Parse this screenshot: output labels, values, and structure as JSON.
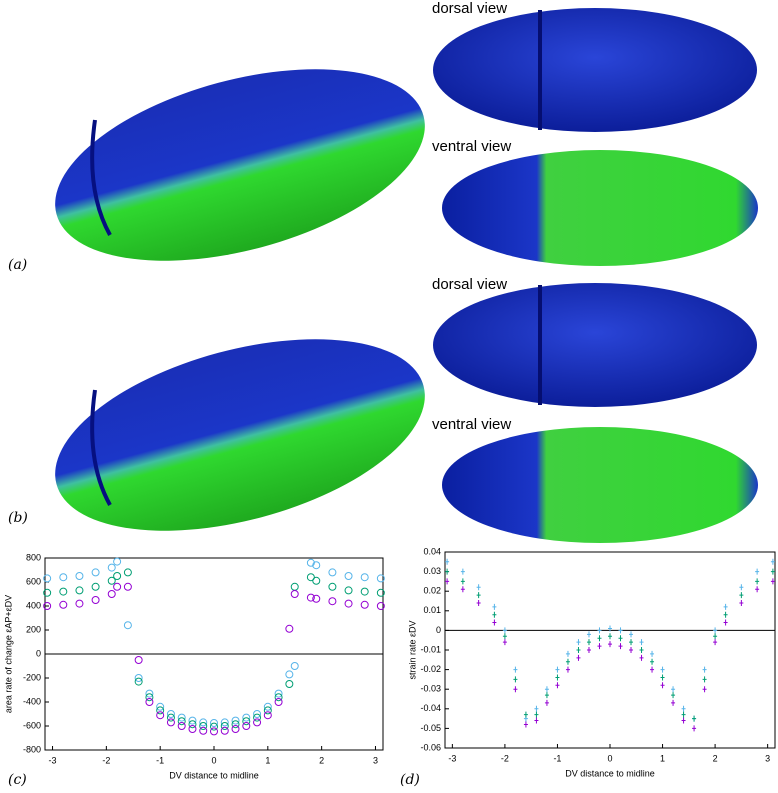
{
  "figure": {
    "panel_labels": [
      "(a)",
      "(b)",
      "(c)",
      "(d)"
    ],
    "view_labels": [
      "dorsal view",
      "ventral view",
      "dorsal view",
      "ventral view"
    ]
  },
  "chart_data": [
    {
      "type": "scatter",
      "marker": "circle",
      "y_label": "area rate of change εAP+εDV",
      "x_label": "DV distance to midline",
      "x": [
        -3.1,
        -2.8,
        -2.5,
        -2.2,
        -1.9,
        -1.8,
        -1.6,
        -1.4,
        -1.2,
        -1.0,
        -0.8,
        -0.6,
        -0.4,
        -0.2,
        0,
        0.2,
        0.4,
        0.6,
        0.8,
        1.0,
        1.2,
        1.4,
        1.5,
        1.8,
        1.9,
        2.2,
        2.5,
        2.8,
        3.1
      ],
      "series": [
        {
          "color": "#56b4e9",
          "values": [
            630,
            640,
            650,
            680,
            720,
            770,
            240,
            -200,
            -330,
            -440,
            -500,
            -530,
            -555,
            -570,
            -575,
            -570,
            -555,
            -530,
            -500,
            -440,
            -330,
            -170,
            -100,
            760,
            740,
            680,
            650,
            640,
            630
          ]
        },
        {
          "color": "#009e73",
          "values": [
            510,
            520,
            530,
            560,
            610,
            650,
            680,
            -230,
            -360,
            -470,
            -530,
            -560,
            -585,
            -600,
            -605,
            -600,
            -585,
            -560,
            -530,
            -470,
            -360,
            -250,
            560,
            640,
            610,
            560,
            530,
            520,
            510
          ]
        },
        {
          "color": "#9400d3",
          "values": [
            400,
            410,
            420,
            450,
            500,
            560,
            560,
            -50,
            -400,
            -510,
            -570,
            -600,
            -625,
            -640,
            -645,
            -640,
            -625,
            -600,
            -570,
            -510,
            -400,
            210,
            500,
            470,
            460,
            440,
            420,
            410,
            400
          ]
        }
      ],
      "xlim": [
        -3.14,
        3.14
      ],
      "xticks": [
        -3,
        -2,
        -1,
        0,
        1,
        2,
        3
      ],
      "ylim": [
        -800,
        800
      ],
      "yticks": [
        -800,
        -600,
        -400,
        -200,
        0,
        200,
        400,
        600,
        800
      ]
    },
    {
      "type": "scatter",
      "marker": "plus",
      "y_label": "strain rate εDV",
      "x_label": "DV distance to midline",
      "x": [
        -3.1,
        -2.8,
        -2.5,
        -2.2,
        -2.0,
        -1.8,
        -1.6,
        -1.4,
        -1.2,
        -1.0,
        -0.8,
        -0.6,
        -0.4,
        -0.2,
        0,
        0.2,
        0.4,
        0.6,
        0.8,
        1.0,
        1.2,
        1.4,
        1.6,
        1.8,
        2.0,
        2.2,
        2.5,
        2.8,
        3.1
      ],
      "series": [
        {
          "color": "#56b4e9",
          "values": [
            0.035,
            0.03,
            0.022,
            0.012,
            0.0,
            -0.02,
            -0.045,
            -0.04,
            -0.03,
            -0.02,
            -0.012,
            -0.006,
            -0.002,
            0.0,
            0.001,
            0.0,
            -0.002,
            -0.006,
            -0.012,
            -0.02,
            -0.03,
            -0.04,
            -0.045,
            -0.02,
            0.0,
            0.012,
            0.022,
            0.03,
            0.035
          ]
        },
        {
          "color": "#009e73",
          "values": [
            0.03,
            0.025,
            0.018,
            0.008,
            -0.003,
            -0.025,
            -0.043,
            -0.043,
            -0.033,
            -0.024,
            -0.016,
            -0.01,
            -0.006,
            -0.004,
            -0.003,
            -0.004,
            -0.006,
            -0.01,
            -0.016,
            -0.024,
            -0.033,
            -0.043,
            -0.045,
            -0.025,
            -0.003,
            0.008,
            0.018,
            0.025,
            0.03
          ]
        },
        {
          "color": "#9400d3",
          "values": [
            0.025,
            0.021,
            0.014,
            0.004,
            -0.006,
            -0.03,
            -0.048,
            -0.046,
            -0.037,
            -0.028,
            -0.02,
            -0.014,
            -0.01,
            -0.008,
            -0.007,
            -0.008,
            -0.01,
            -0.014,
            -0.02,
            -0.028,
            -0.037,
            -0.046,
            -0.05,
            -0.03,
            -0.006,
            0.004,
            0.014,
            0.021,
            0.025
          ]
        }
      ],
      "xlim": [
        -3.14,
        3.14
      ],
      "xticks": [
        -3,
        -2,
        -1,
        0,
        1,
        2,
        3
      ],
      "ylim": [
        -0.06,
        0.04
      ],
      "yticks": [
        -0.06,
        -0.05,
        -0.04,
        -0.03,
        -0.02,
        -0.01,
        0,
        0.01,
        0.02,
        0.03,
        0.04
      ]
    }
  ]
}
